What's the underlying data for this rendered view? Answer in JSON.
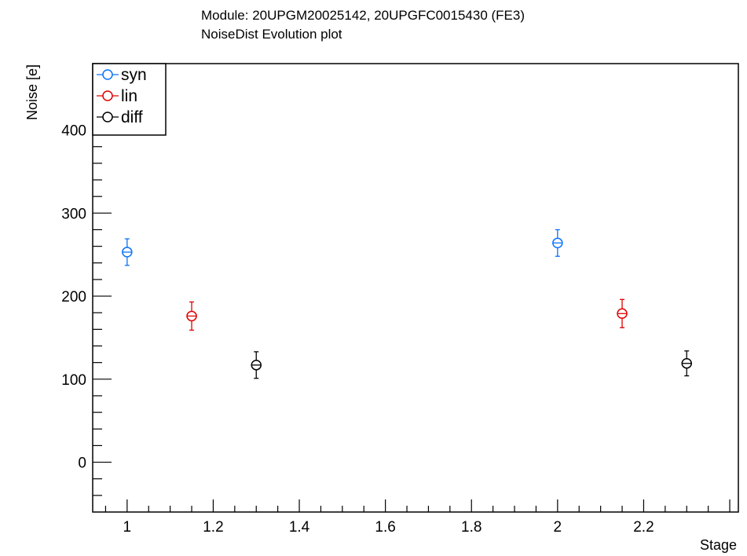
{
  "chart_data": {
    "type": "scatter",
    "title": "Module: 20UPGM20025142, 20UPGFC0015430 (FE3)",
    "subtitle": "NoiseDist Evolution plot",
    "xlabel": "Stage",
    "ylabel": "Noise [e]",
    "xlim": [
      0.92,
      2.42
    ],
    "ylim": [
      -60,
      480
    ],
    "x_ticks": [
      1,
      1.2,
      1.4,
      1.6,
      1.8,
      2,
      2.2
    ],
    "x_tick_labels": [
      "1",
      "1.2",
      "1.4",
      "1.6",
      "1.8",
      "2",
      "2.2"
    ],
    "y_ticks": [
      0,
      100,
      200,
      300,
      400
    ],
    "y_tick_labels": [
      "0",
      "100",
      "200",
      "300",
      "400"
    ],
    "grid": false,
    "legend_position": "top-left",
    "series": [
      {
        "name": "syn",
        "color": "#0a72ff",
        "points": [
          {
            "x": 1.0,
            "y": 253,
            "err": 16
          },
          {
            "x": 2.0,
            "y": 264,
            "err": 16
          }
        ]
      },
      {
        "name": "lin",
        "color": "#e00000",
        "points": [
          {
            "x": 1.15,
            "y": 176,
            "err": 17
          },
          {
            "x": 2.15,
            "y": 179,
            "err": 17
          }
        ]
      },
      {
        "name": "diff",
        "color": "#000000",
        "points": [
          {
            "x": 1.3,
            "y": 117,
            "err": 16
          },
          {
            "x": 2.3,
            "y": 119,
            "err": 15
          }
        ]
      }
    ]
  }
}
